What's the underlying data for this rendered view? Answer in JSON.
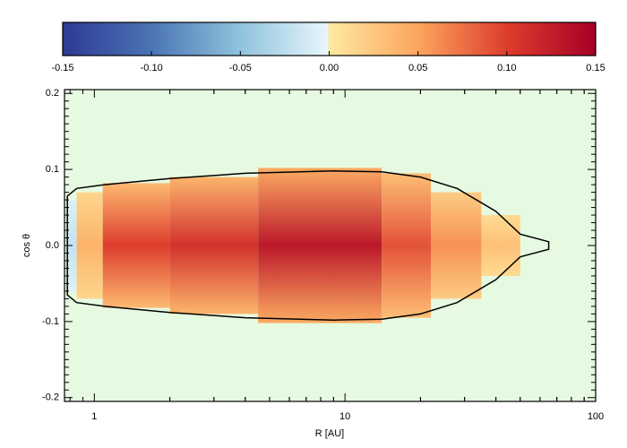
{
  "chart_data": {
    "type": "heatmap",
    "x_label": "R [AU]",
    "y_label": "cos θ",
    "xlim": [
      0.76,
      100
    ],
    "ylim": [
      -0.205,
      0.205
    ],
    "log_x": true,
    "xticks": [
      1,
      10,
      100
    ],
    "yticks": [
      -0.2,
      -0.1,
      {
        "value": 0,
        "label": "0.0"
      },
      0.1,
      0.2
    ],
    "background": "#e6fae1",
    "colorbar": {
      "clim": [
        -0.15,
        0.15
      ],
      "ticks": [
        -0.15,
        {
          "value": -0.1,
          "label": "-0.10"
        },
        {
          "value": -0.05,
          "label": "-0.05"
        },
        {
          "value": 0,
          "label": "0.00"
        },
        {
          "value": 0.05,
          "label": "0.05"
        },
        {
          "value": 0.1,
          "label": "0.10"
        },
        0.15
      ]
    },
    "colormap": {
      "values": [
        -0.15,
        -0.1,
        -0.05,
        -0.001,
        0,
        0.05,
        0.1,
        0.15
      ],
      "colors": [
        "#2c3a94",
        "#4a74b4",
        "#8fc3dd",
        "#e8f6fb",
        "#fee9a0",
        "#fca55d",
        "#dd3d2d",
        "#a50026"
      ]
    },
    "bands": {
      "edges": [
        0.78,
        0.85,
        1.08,
        2.0,
        4.5,
        14,
        22,
        35,
        50
      ],
      "values": [
        -0.02,
        0.04,
        0.1,
        0.11,
        0.13,
        0.09,
        0.06,
        0.03
      ],
      "half_heights": [
        0.06,
        0.07,
        0.082,
        0.09,
        0.102,
        0.095,
        0.07,
        0.04
      ]
    },
    "contour": {
      "x": [
        0.78,
        0.85,
        1.1,
        2,
        4,
        9,
        14,
        20,
        28,
        40,
        50,
        65,
        65,
        50,
        40,
        28,
        20,
        14,
        9,
        4,
        2,
        1.1,
        0.85,
        0.78
      ],
      "y": [
        0.065,
        0.075,
        0.08,
        0.088,
        0.095,
        0.098,
        0.097,
        0.09,
        0.075,
        0.045,
        0.015,
        0.005,
        -0.005,
        -0.015,
        -0.045,
        -0.075,
        -0.09,
        -0.097,
        -0.098,
        -0.095,
        -0.088,
        -0.08,
        -0.075,
        -0.065
      ]
    }
  }
}
